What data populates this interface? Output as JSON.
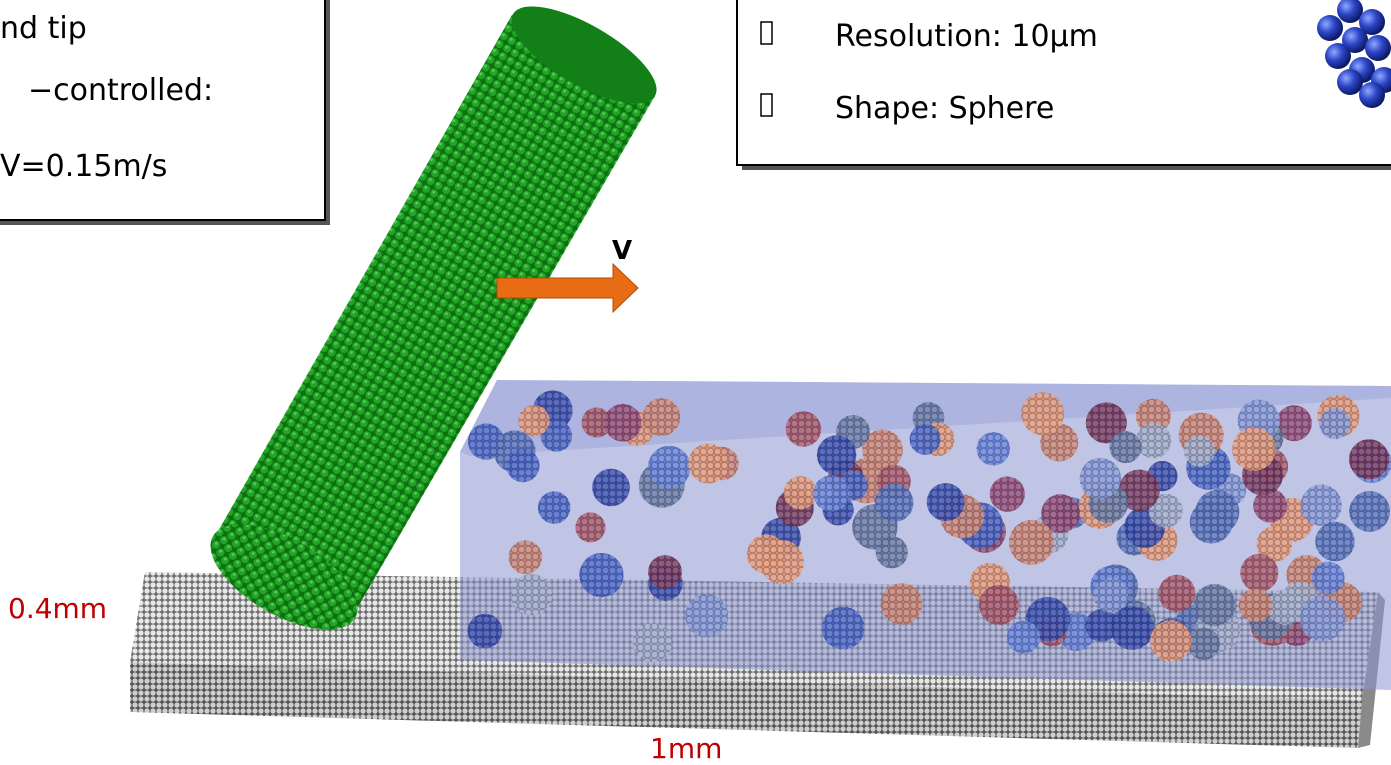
{
  "left_box": {
    "lines": [
      "nd tip",
      "−controlled:",
      "V=0.15m/s"
    ]
  },
  "right_box": {
    "items": [
      "Resolution: 10μm",
      "Shape: Sphere"
    ]
  },
  "figure": {
    "velocity_label": "V",
    "height_label": "0.4mm",
    "length_label": "1mm"
  }
}
